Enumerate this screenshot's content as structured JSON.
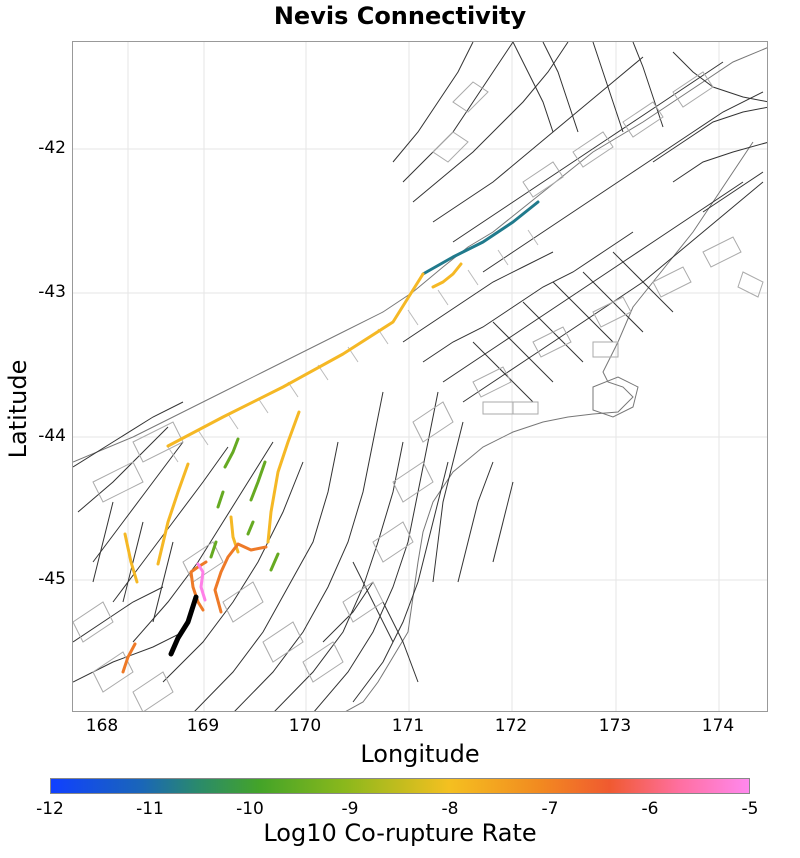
{
  "title": "Nevis Connectivity",
  "axes": {
    "xlabel": "Longitude",
    "ylabel": "Latitude",
    "x_ticks": [
      "168",
      "169",
      "170",
      "171",
      "172",
      "173",
      "174"
    ],
    "y_ticks": [
      "-42",
      "-43",
      "-44",
      "-45"
    ]
  },
  "colorbar": {
    "label": "Log10 Co-rupture Rate",
    "ticks": [
      "-12",
      "-11",
      "-10",
      "-9",
      "-8",
      "-7",
      "-6",
      "-5"
    ],
    "range": [
      -12,
      -5
    ]
  },
  "colors": {
    "teal": "#207a8c",
    "yellow": "#f5b825",
    "orange": "#ee7a28",
    "green": "#66aa22",
    "pink": "#ff80e8",
    "black": "#000000"
  }
}
